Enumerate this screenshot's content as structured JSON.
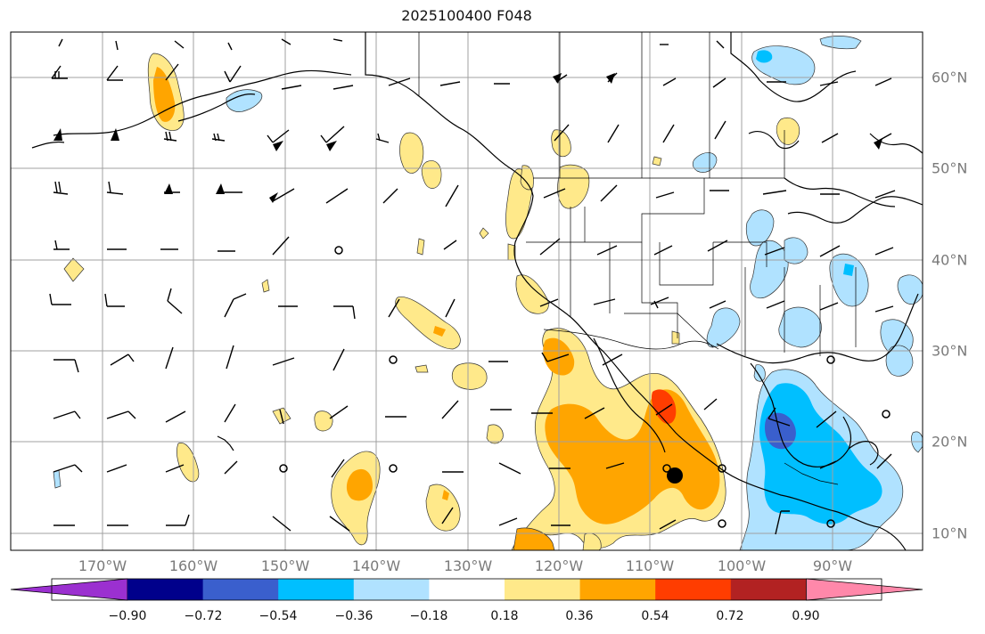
{
  "title": "2025100400 F048",
  "lon_axis": [
    "170°W",
    "160°W",
    "150°W",
    "140°W",
    "130°W",
    "120°W",
    "110°W",
    "100°W",
    "90°W"
  ],
  "lat_axis": [
    "60°N",
    "50°N",
    "40°N",
    "30°N",
    "20°N",
    "10°N"
  ],
  "colorbar": {
    "ticks": [
      "−0.90",
      "−0.72",
      "−0.54",
      "−0.36",
      "−0.18",
      "0.18",
      "0.36",
      "0.54",
      "0.72",
      "0.90"
    ],
    "colors": [
      "#9b30d0",
      "#00008b",
      "#3a5fcd",
      "#00bfff",
      "#b0e2ff",
      "#ffffff",
      "#ffe98a",
      "#ffa500",
      "#ff3d00",
      "#b22222",
      "#ff88aa"
    ]
  },
  "colors": {
    "grid": "#a0a0a0",
    "coast": "#000000",
    "label": "#7a7a7a"
  },
  "marker": {
    "name": "filled-black-dot"
  }
}
